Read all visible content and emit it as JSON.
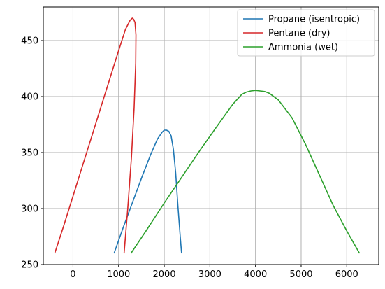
{
  "chart_data": {
    "type": "line",
    "title": "",
    "xlabel": "",
    "ylabel": "",
    "xlim": [
      -650,
      6700
    ],
    "ylim": [
      250,
      480
    ],
    "xticks": [
      0,
      1000,
      2000,
      3000,
      4000,
      5000,
      6000
    ],
    "yticks": [
      250,
      300,
      350,
      400,
      450
    ],
    "grid": true,
    "legend_position": "top-right",
    "series": [
      {
        "name": "Propane (isentropic)",
        "color": "#1f77b4",
        "x": [
          900,
          1100,
          1300,
          1500,
          1700,
          1850,
          1950,
          2000,
          2050,
          2100,
          2150,
          2200,
          2250,
          2300,
          2350,
          2380
        ],
        "y": [
          260,
          283,
          305,
          327,
          348,
          362,
          368,
          370,
          370,
          369,
          365,
          353,
          332,
          302,
          275,
          260
        ]
      },
      {
        "name": "Pentane (dry)",
        "color": "#d62728",
        "x": [
          -400,
          -200,
          0,
          200,
          400,
          600,
          800,
          1000,
          1150,
          1250,
          1300,
          1330,
          1360,
          1380,
          1375,
          1340,
          1280,
          1200,
          1150,
          1120
        ],
        "y": [
          260,
          285,
          311,
          337,
          363,
          389,
          415,
          441,
          460,
          468,
          470,
          469,
          466,
          455,
          430,
          390,
          345,
          300,
          275,
          260
        ]
      },
      {
        "name": "Ammonia (wet)",
        "color": "#2ca02c",
        "x": [
          1270,
          1600,
          2000,
          2400,
          2800,
          3200,
          3500,
          3700,
          3800,
          3900,
          4000,
          4100,
          4200,
          4300,
          4500,
          4800,
          5100,
          5400,
          5700,
          6000,
          6280
        ],
        "y": [
          260,
          280,
          305,
          329,
          353,
          376,
          393,
          402,
          404,
          405,
          405.5,
          405,
          404.5,
          403,
          397,
          381,
          357,
          330,
          303,
          280,
          260
        ]
      }
    ]
  }
}
